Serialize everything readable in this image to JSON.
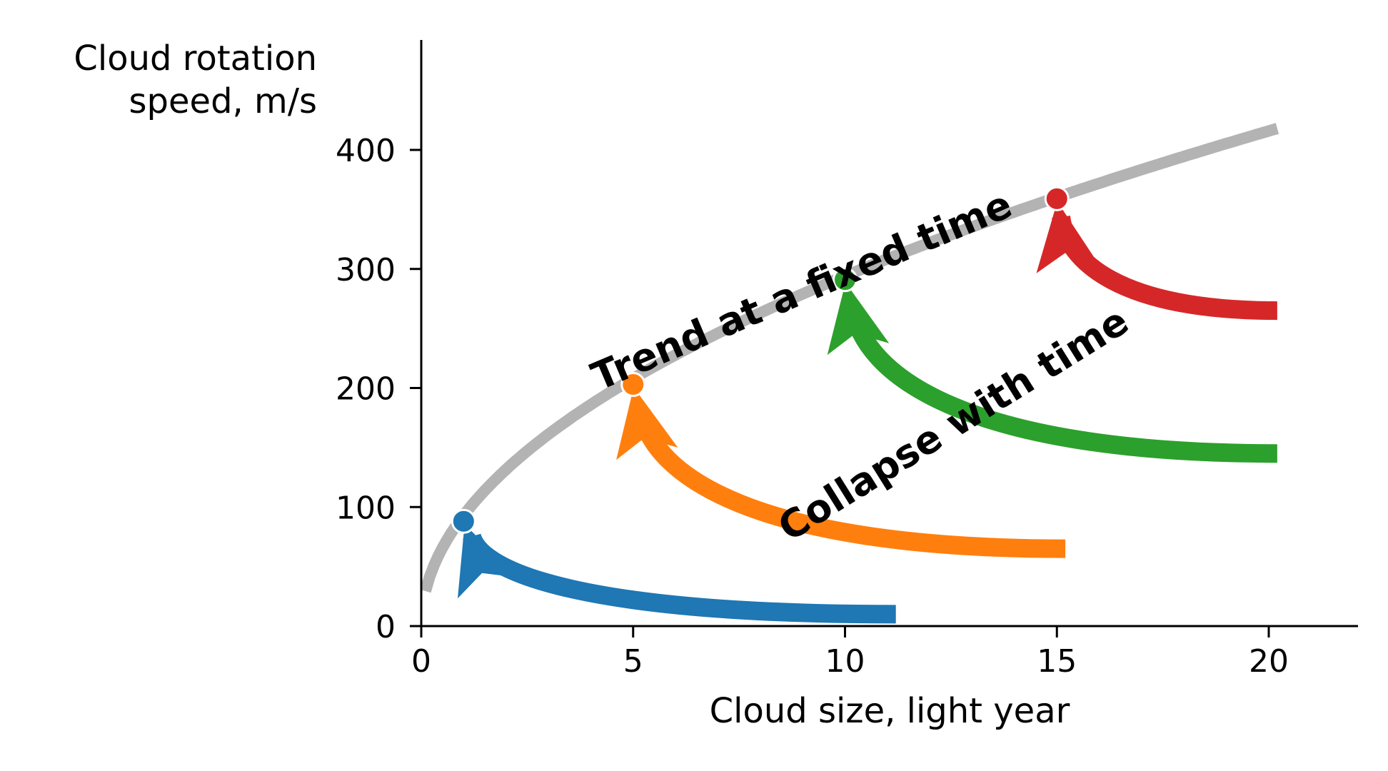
{
  "chart_data": {
    "type": "line",
    "title": "",
    "xlabel": "Cloud size, light year",
    "ylabel": "Cloud rotation speed, m/s",
    "ylabel_lines": [
      "Cloud rotation",
      "speed, m/s"
    ],
    "xlim": [
      0,
      22
    ],
    "ylim": [
      0,
      500
    ],
    "xticks": [
      0,
      5,
      10,
      15,
      20
    ],
    "xtick_labels": [
      "0",
      "5",
      "10",
      "15",
      "20"
    ],
    "yticks": [
      0,
      100,
      200,
      300,
      400
    ],
    "ytick_labels": [
      "0",
      "100",
      "200",
      "300",
      "400"
    ],
    "grid": false,
    "legend": "none",
    "trend": {
      "label": "Trend at a fixed time",
      "color": "#b3b3b3",
      "x_start": 0.1,
      "x_end": 20.2,
      "function": "y = 93 * x^0.5",
      "points": [
        {
          "x": 1,
          "y": 88,
          "color": "#1f77b4"
        },
        {
          "x": 5,
          "y": 203,
          "color": "#ff7f0e"
        },
        {
          "x": 10,
          "y": 291,
          "color": "#2ca02c"
        },
        {
          "x": 15,
          "y": 359,
          "color": "#d62728"
        }
      ]
    },
    "collapse": {
      "label": "Collapse with time",
      "series": [
        {
          "color": "#1f77b4",
          "from": {
            "x": 11.2,
            "y": 10
          },
          "to": {
            "x": 1,
            "y": 88
          }
        },
        {
          "color": "#ff7f0e",
          "from": {
            "x": 15.2,
            "y": 65
          },
          "to": {
            "x": 5,
            "y": 203
          }
        },
        {
          "color": "#2ca02c",
          "from": {
            "x": 20.2,
            "y": 145
          },
          "to": {
            "x": 10,
            "y": 291
          }
        },
        {
          "color": "#d62728",
          "from": {
            "x": 20.2,
            "y": 265
          },
          "to": {
            "x": 15,
            "y": 359
          }
        }
      ]
    }
  }
}
